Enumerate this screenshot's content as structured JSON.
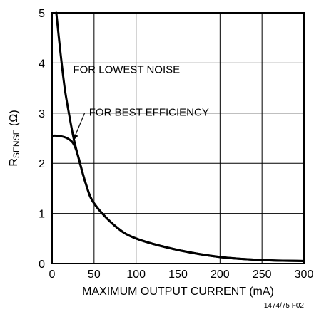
{
  "chart_data": {
    "type": "line",
    "xlabel": "MAXIMUM OUTPUT CURRENT (mA)",
    "ylabel": {
      "prefix": "R",
      "subscript": "SENSE",
      "suffix": " (Ω)"
    },
    "xlim": [
      0,
      300
    ],
    "ylim": [
      0,
      5
    ],
    "x_ticks": [
      "0",
      "50",
      "100",
      "150",
      "200",
      "250",
      "300"
    ],
    "y_ticks": [
      "0",
      "1",
      "2",
      "3",
      "4",
      "5"
    ],
    "grid": true,
    "series": [
      {
        "name": "FOR LOWEST NOISE",
        "points": [
          [
            5,
            5.0
          ],
          [
            10,
            4.2
          ],
          [
            15,
            3.5
          ],
          [
            20,
            3.0
          ],
          [
            25,
            2.55
          ],
          [
            30,
            2.2
          ],
          [
            40,
            1.6
          ],
          [
            50,
            1.2
          ],
          [
            75,
            0.75
          ],
          [
            100,
            0.5
          ],
          [
            150,
            0.27
          ],
          [
            200,
            0.13
          ],
          [
            250,
            0.07
          ],
          [
            300,
            0.05
          ]
        ]
      },
      {
        "name": "FOR BEST EFFICIENCY",
        "points": [
          [
            0,
            2.55
          ],
          [
            5,
            2.55
          ],
          [
            10,
            2.54
          ],
          [
            15,
            2.52
          ],
          [
            20,
            2.48
          ],
          [
            25,
            2.4
          ],
          [
            30,
            2.2
          ],
          [
            40,
            1.6
          ],
          [
            50,
            1.2
          ],
          [
            75,
            0.75
          ],
          [
            100,
            0.5
          ],
          [
            150,
            0.27
          ],
          [
            200,
            0.13
          ],
          [
            250,
            0.07
          ],
          [
            300,
            0.05
          ]
        ]
      }
    ],
    "annotations": [
      {
        "text": "FOR LOWEST NOISE",
        "x": 25,
        "y": 3.8
      },
      {
        "text": "FOR BEST EFFICIENCY",
        "x": 44,
        "y": 2.95,
        "arrow_to": [
          25,
          2.45
        ]
      }
    ],
    "figure_code": "1474/75 F02"
  }
}
